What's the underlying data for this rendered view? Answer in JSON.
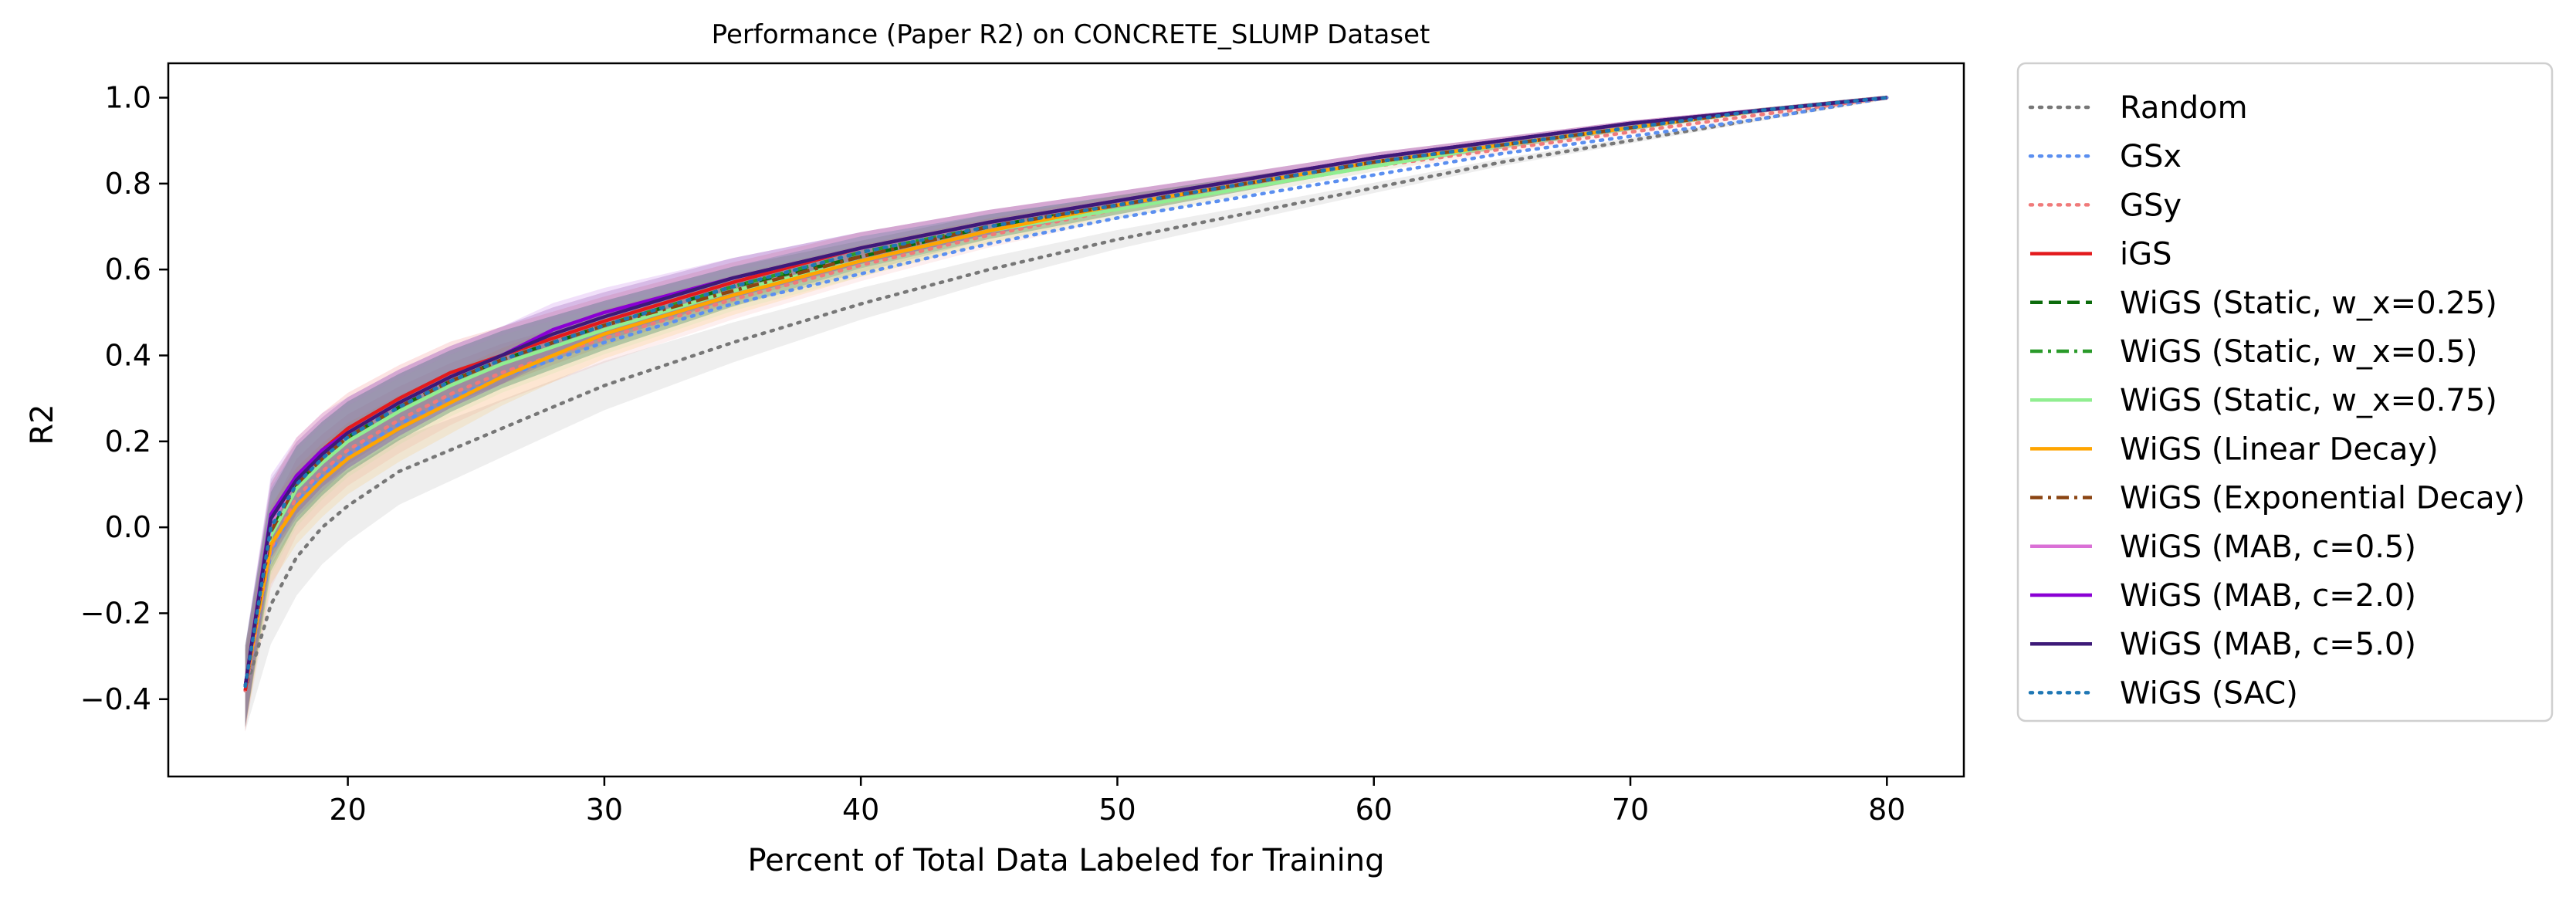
{
  "chart_data": {
    "type": "line",
    "title": "Performance (Paper R2) on CONCRETE_SLUMP Dataset",
    "xlabel": "Percent of Total Data Labeled for Training",
    "ylabel": "R2",
    "xlim": [
      13,
      83
    ],
    "ylim": [
      -0.58,
      1.08
    ],
    "xticks": [
      20,
      30,
      40,
      50,
      60,
      70,
      80
    ],
    "yticks": [
      -0.4,
      -0.2,
      0.0,
      0.2,
      0.4,
      0.6,
      0.8,
      1.0
    ],
    "ytick_labels": [
      "−0.4",
      "−0.2",
      "0.0",
      "0.2",
      "0.4",
      "0.6",
      "0.8",
      "1.0"
    ],
    "grid": false,
    "legend_position": "outside-right",
    "x": [
      16,
      17,
      18,
      19,
      20,
      22,
      24,
      26,
      28,
      30,
      35,
      40,
      45,
      50,
      55,
      60,
      65,
      70,
      75,
      80
    ],
    "series": [
      {
        "name": "Random",
        "color": "#777777",
        "dash": "dotted",
        "band": true,
        "values": [
          -0.38,
          -0.18,
          -0.07,
          0.0,
          0.05,
          0.13,
          0.18,
          0.23,
          0.28,
          0.33,
          0.43,
          0.52,
          0.6,
          0.67,
          0.73,
          0.79,
          0.85,
          0.9,
          0.95,
          1.0
        ]
      },
      {
        "name": "GSx",
        "color": "#5b8ff0",
        "dash": "dotted",
        "band": false,
        "values": [
          -0.38,
          -0.06,
          0.06,
          0.12,
          0.17,
          0.24,
          0.3,
          0.35,
          0.39,
          0.43,
          0.52,
          0.59,
          0.66,
          0.72,
          0.77,
          0.82,
          0.87,
          0.91,
          0.95,
          1.0
        ]
      },
      {
        "name": "GSy",
        "color": "#f07a7a",
        "dash": "dotted",
        "band": true,
        "values": [
          -0.38,
          -0.05,
          0.07,
          0.13,
          0.18,
          0.25,
          0.31,
          0.36,
          0.4,
          0.44,
          0.53,
          0.61,
          0.68,
          0.74,
          0.79,
          0.84,
          0.88,
          0.92,
          0.96,
          1.0
        ]
      },
      {
        "name": "iGS",
        "color": "#e31a1c",
        "dash": "solid",
        "band": true,
        "values": [
          -0.38,
          0.01,
          0.12,
          0.18,
          0.23,
          0.3,
          0.36,
          0.4,
          0.44,
          0.48,
          0.57,
          0.65,
          0.71,
          0.76,
          0.81,
          0.86,
          0.9,
          0.94,
          0.97,
          1.0
        ]
      },
      {
        "name": "WiGS (Static, w_x=0.25)",
        "color": "#0b6b0b",
        "dash": "dashed",
        "band": true,
        "values": [
          -0.37,
          -0.01,
          0.1,
          0.16,
          0.21,
          0.28,
          0.34,
          0.39,
          0.43,
          0.47,
          0.56,
          0.63,
          0.7,
          0.75,
          0.8,
          0.85,
          0.89,
          0.93,
          0.97,
          1.0
        ]
      },
      {
        "name": "WiGS (Static, w_x=0.5)",
        "color": "#2a9a2a",
        "dash": "dashdot",
        "band": true,
        "values": [
          -0.37,
          -0.01,
          0.1,
          0.16,
          0.21,
          0.28,
          0.34,
          0.39,
          0.43,
          0.47,
          0.56,
          0.64,
          0.7,
          0.75,
          0.8,
          0.85,
          0.89,
          0.93,
          0.97,
          1.0
        ]
      },
      {
        "name": "WiGS (Static, w_x=0.75)",
        "color": "#90ee90",
        "dash": "solid",
        "band": true,
        "values": [
          -0.37,
          -0.02,
          0.09,
          0.15,
          0.2,
          0.27,
          0.33,
          0.38,
          0.42,
          0.46,
          0.55,
          0.62,
          0.69,
          0.74,
          0.79,
          0.84,
          0.89,
          0.93,
          0.97,
          1.0
        ]
      },
      {
        "name": "WiGS (Linear Decay)",
        "color": "#ffa500",
        "dash": "solid",
        "band": true,
        "values": [
          -0.37,
          -0.04,
          0.05,
          0.11,
          0.16,
          0.23,
          0.29,
          0.35,
          0.4,
          0.45,
          0.54,
          0.62,
          0.69,
          0.75,
          0.8,
          0.85,
          0.89,
          0.93,
          0.97,
          1.0
        ]
      },
      {
        "name": "WiGS (Exponential Decay)",
        "color": "#8b4513",
        "dash": "dashdot",
        "band": false,
        "values": [
          -0.37,
          -0.01,
          0.1,
          0.16,
          0.21,
          0.28,
          0.34,
          0.39,
          0.43,
          0.47,
          0.55,
          0.63,
          0.7,
          0.75,
          0.8,
          0.85,
          0.89,
          0.93,
          0.97,
          1.0
        ]
      },
      {
        "name": "WiGS (MAB, c=0.5)",
        "color": "#da70d6",
        "dash": "solid",
        "band": true,
        "values": [
          -0.37,
          0.01,
          0.11,
          0.17,
          0.22,
          0.29,
          0.35,
          0.4,
          0.45,
          0.49,
          0.58,
          0.65,
          0.71,
          0.76,
          0.81,
          0.86,
          0.9,
          0.94,
          0.97,
          1.0
        ]
      },
      {
        "name": "WiGS (MAB, c=2.0)",
        "color": "#8a00d4",
        "dash": "solid",
        "band": true,
        "values": [
          -0.37,
          0.03,
          0.12,
          0.18,
          0.22,
          0.29,
          0.35,
          0.4,
          0.46,
          0.5,
          0.58,
          0.65,
          0.71,
          0.76,
          0.81,
          0.86,
          0.9,
          0.94,
          0.97,
          1.0
        ]
      },
      {
        "name": "WiGS (MAB, c=5.0)",
        "color": "#3d1a78",
        "dash": "solid",
        "band": true,
        "values": [
          -0.37,
          0.02,
          0.11,
          0.17,
          0.22,
          0.29,
          0.35,
          0.4,
          0.45,
          0.49,
          0.58,
          0.65,
          0.71,
          0.76,
          0.81,
          0.86,
          0.9,
          0.94,
          0.97,
          1.0
        ]
      },
      {
        "name": "WiGS (SAC)",
        "color": "#1f77b4",
        "dash": "dotted",
        "band": true,
        "values": [
          -0.37,
          0.0,
          0.1,
          0.16,
          0.21,
          0.28,
          0.34,
          0.39,
          0.43,
          0.47,
          0.56,
          0.64,
          0.7,
          0.75,
          0.8,
          0.85,
          0.89,
          0.93,
          0.97,
          1.0
        ]
      }
    ]
  }
}
